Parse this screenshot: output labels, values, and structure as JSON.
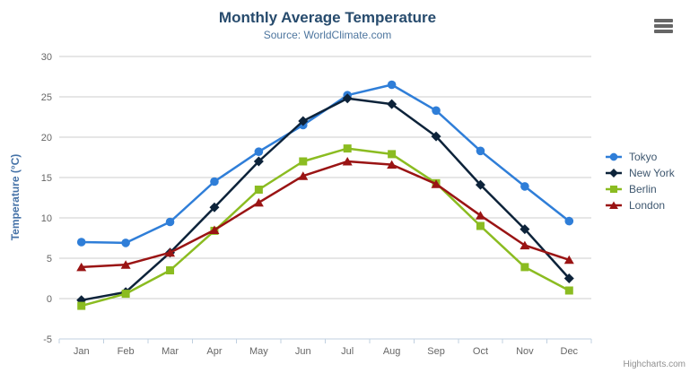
{
  "header": {
    "title": "Monthly Average Temperature",
    "subtitle": "Source: WorldClimate.com"
  },
  "credits": "Highcharts.com",
  "export_menu": {
    "icon": "hamburger-menu-icon"
  },
  "colors": {
    "background": "#ffffff",
    "title": "#274b6d",
    "subtitle": "#4d759e",
    "axis_title": "#4572a7",
    "axis_labels": "#666666",
    "grid": "#cccccc",
    "axis_line": "#c0d0e0",
    "legend_text": "#3e576f",
    "credits": "#909090",
    "menu_icon": "#666666"
  },
  "chart_data": {
    "type": "line",
    "title": "Monthly Average Temperature",
    "subtitle": "Source: WorldClimate.com",
    "xlabel": "",
    "ylabel": "Temperature (°C)",
    "ylim": [
      -5,
      30
    ],
    "ytick_step": 5,
    "grid": true,
    "legend_position": "right",
    "categories": [
      "Jan",
      "Feb",
      "Mar",
      "Apr",
      "May",
      "Jun",
      "Jul",
      "Aug",
      "Sep",
      "Oct",
      "Nov",
      "Dec"
    ],
    "series": [
      {
        "name": "Tokyo",
        "color": "#2f7ed8",
        "marker": "circle",
        "values": [
          7.0,
          6.9,
          9.5,
          14.5,
          18.2,
          21.5,
          25.2,
          26.5,
          23.3,
          18.3,
          13.9,
          9.6
        ]
      },
      {
        "name": "New York",
        "color": "#0d233a",
        "marker": "diamond",
        "values": [
          -0.2,
          0.8,
          5.7,
          11.3,
          17.0,
          22.0,
          24.8,
          24.1,
          20.1,
          14.1,
          8.6,
          2.5
        ]
      },
      {
        "name": "Berlin",
        "color": "#8bbc21",
        "marker": "square",
        "values": [
          -0.9,
          0.6,
          3.5,
          8.4,
          13.5,
          17.0,
          18.6,
          17.9,
          14.3,
          9.0,
          3.9,
          1.0
        ]
      },
      {
        "name": "London",
        "color": "#9a1414",
        "marker": "triangle",
        "values": [
          3.9,
          4.2,
          5.7,
          8.5,
          11.9,
          15.2,
          17.0,
          16.6,
          14.2,
          10.3,
          6.6,
          4.8
        ]
      }
    ]
  }
}
